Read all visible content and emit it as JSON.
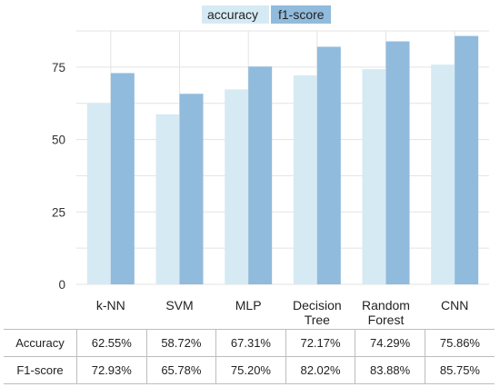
{
  "colors": {
    "accuracy": "#d6eaf4",
    "f1": "#91bbdc",
    "grid": "#e3e3e3",
    "background": "#ffffff"
  },
  "chart_data": {
    "type": "bar",
    "categories": [
      "k-NN",
      "SVM",
      "MLP",
      "Decision Tree",
      "Random Forest",
      "CNN"
    ],
    "category_lines": [
      [
        "k-NN"
      ],
      [
        "SVM"
      ],
      [
        "MLP"
      ],
      [
        "Decision",
        "Tree"
      ],
      [
        "Random",
        "Forest"
      ],
      [
        "CNN"
      ]
    ],
    "series": [
      {
        "name": "accuracy",
        "values": [
          62.55,
          58.72,
          67.31,
          72.17,
          74.29,
          75.86
        ]
      },
      {
        "name": "f1-score",
        "values": [
          72.93,
          65.78,
          75.2,
          82.02,
          83.88,
          85.75
        ]
      }
    ],
    "ylim": [
      0,
      87.5
    ],
    "yticks": [
      0,
      25,
      50,
      75
    ],
    "grid": true,
    "legend_position": "top-center",
    "title": "",
    "xlabel": "",
    "ylabel": ""
  },
  "table": {
    "rows": [
      {
        "label": "Accuracy",
        "cells": [
          "62.55%",
          "58.72%",
          "67.31%",
          "72.17%",
          "74.29%",
          "75.86%"
        ]
      },
      {
        "label": "F1-score",
        "cells": [
          "72.93%",
          "65.78%",
          "75.20%",
          "82.02%",
          "83.88%",
          "85.75%"
        ]
      }
    ]
  }
}
